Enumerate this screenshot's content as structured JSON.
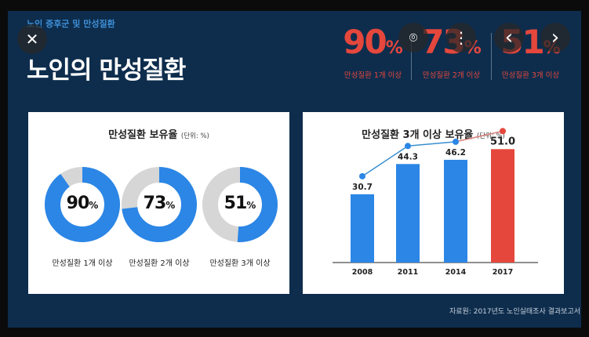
{
  "slide": {
    "subtitle": "노인 증후군 및 만성질환",
    "title": "노인의 만성질환",
    "source": "자료원: 2017년도 노인실태조사 결과보고서"
  },
  "stats": [
    {
      "value": "90",
      "unit": "%",
      "caption": "만성질환 1개 이상"
    },
    {
      "value": "73",
      "unit": "%",
      "caption": "만성질환 2개 이상"
    },
    {
      "value": "51",
      "unit": "%",
      "caption": "만성질환 3개 이상"
    }
  ],
  "donut_panel": {
    "title": "만성질환 보유율",
    "unit": "(단위: %)"
  },
  "bar_panel": {
    "title": "만성질환 3개 이상 보유율",
    "unit": "(단위: %)"
  },
  "overlay": {
    "close": "✕",
    "lens": "⌾",
    "more": "⋮",
    "prev": "‹",
    "next": "›"
  },
  "colors": {
    "background": "#0e2d4d",
    "blue": "#2b86e6",
    "red": "#e5473c",
    "grey": "#d6d6d6",
    "line": "#3a8fd0"
  },
  "chart_data": [
    {
      "type": "pie",
      "variant": "donut",
      "title": "만성질환 보유율",
      "unit": "(단위: %)",
      "slices": [
        {
          "label": "만성질환 1개 이상",
          "value": 90,
          "center_value": "90",
          "unit": "%"
        },
        {
          "label": "만성질환 2개 이상",
          "value": 73,
          "center_value": "73",
          "unit": "%"
        },
        {
          "label": "만성질환 3개 이상",
          "value": 51,
          "center_value": "51",
          "unit": "%"
        }
      ]
    },
    {
      "type": "bar",
      "title": "만성질환 3개 이상 보유율",
      "unit": "(단위: %)",
      "categories": [
        "2008",
        "2011",
        "2014",
        "2017"
      ],
      "values": [
        30.7,
        44.3,
        46.2,
        51.0
      ],
      "value_labels": [
        "30.7",
        "44.3",
        "46.2",
        "51.0"
      ],
      "highlight_index": 3,
      "ylim": [
        0,
        60
      ]
    }
  ]
}
